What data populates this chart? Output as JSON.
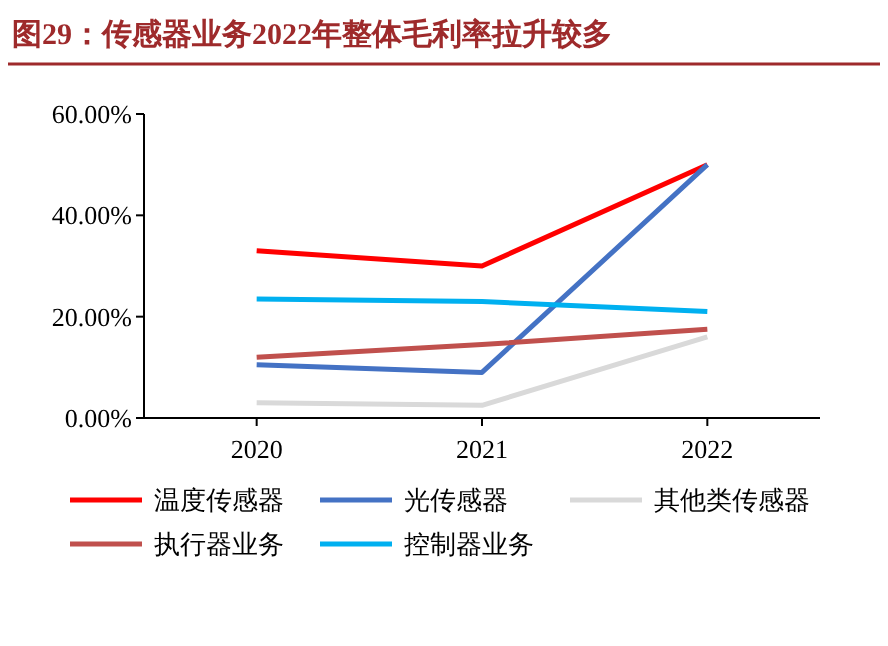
{
  "chart_data": {
    "type": "line",
    "title": "图29：传感器业务2022年整体毛利率拉升较多",
    "categories": [
      "2020",
      "2021",
      "2022"
    ],
    "ylim": [
      0,
      60
    ],
    "yticks": [
      {
        "value": 0,
        "label": "0.00%"
      },
      {
        "value": 20,
        "label": "20.00%"
      },
      {
        "value": 40,
        "label": "40.00%"
      },
      {
        "value": 60,
        "label": "60.00%"
      }
    ],
    "grid": false,
    "legend": "bottom",
    "marker": "none",
    "line_style": "solid",
    "series": [
      {
        "name": "温度传感器",
        "color": "#ff0000",
        "values": [
          33,
          30,
          50
        ]
      },
      {
        "name": "光传感器",
        "color": "#4472c4",
        "values": [
          10.5,
          9,
          50
        ]
      },
      {
        "name": "其他类传感器",
        "color": "#d9d9d9",
        "values": [
          3,
          2.5,
          16
        ]
      },
      {
        "name": "执行器业务",
        "color": "#c0504d",
        "values": [
          12,
          14.5,
          17.5
        ]
      },
      {
        "name": "控制器业务",
        "color": "#00b0f0",
        "values": [
          23.5,
          23,
          21
        ]
      }
    ]
  }
}
